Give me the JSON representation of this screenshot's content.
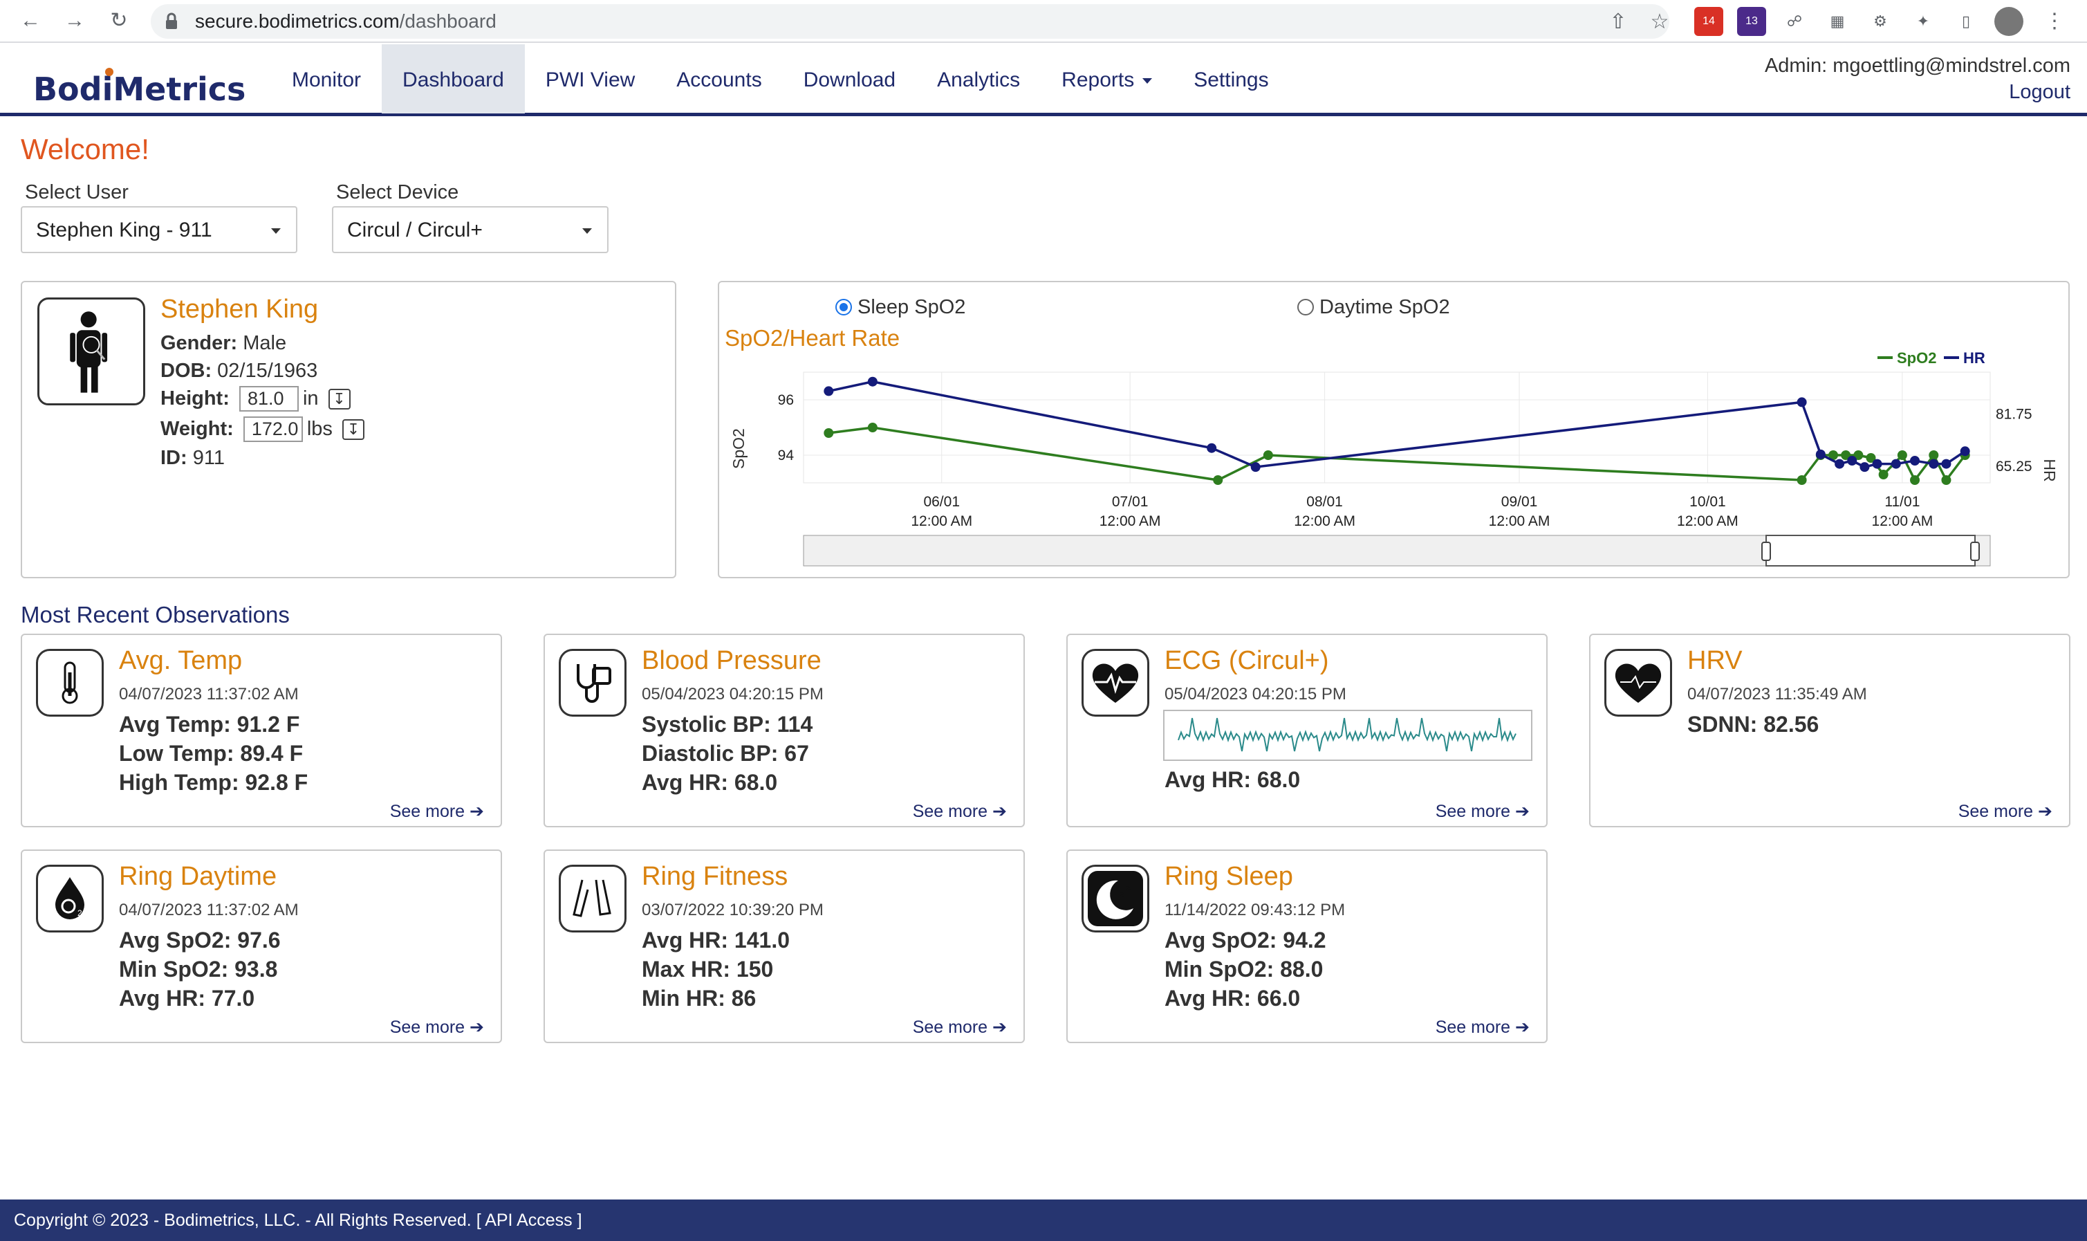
{
  "browser": {
    "url_host": "secure.bodimetrics.com",
    "url_path": "/dashboard",
    "ext_badges": [
      "14",
      "13"
    ]
  },
  "app": {
    "logo": {
      "pre": "Bod",
      "i": "i",
      "post": "Metrics"
    },
    "nav": [
      "Monitor",
      "Dashboard",
      "PWI View",
      "Accounts",
      "Download",
      "Analytics",
      "Reports",
      "Settings"
    ],
    "active_nav": "Dashboard",
    "admin_label": "Admin: mgoettling@mindstrel.com",
    "logout": "Logout"
  },
  "welcome": "Welcome!",
  "select_user": {
    "label": "Select User",
    "value": "Stephen King - 911"
  },
  "select_device": {
    "label": "Select Device",
    "value": "Circul / Circul+"
  },
  "profile": {
    "name": "Stephen King",
    "gender_label": "Gender:",
    "gender": "Male",
    "dob_label": "DOB:",
    "dob": "02/15/1963",
    "height_label": "Height:",
    "height": "81.0",
    "height_unit": "in",
    "weight_label": "Weight:",
    "weight": "172.0",
    "weight_unit": "lbs",
    "id_label": "ID:",
    "id": "911"
  },
  "chart_card": {
    "radio_sleep": "Sleep SpO2",
    "radio_day": "Daytime SpO2",
    "title": "SpO2/Heart Rate"
  },
  "chart_data": {
    "type": "line",
    "title": "SpO2/Heart Rate",
    "ylabel": "SpO2",
    "y2label": "HR",
    "x_ticks": [
      {
        "date": "06/01",
        "time": "12:00 AM"
      },
      {
        "date": "07/01",
        "time": "12:00 AM"
      },
      {
        "date": "08/01",
        "time": "12:00 AM"
      },
      {
        "date": "09/01",
        "time": "12:00 AM"
      },
      {
        "date": "10/01",
        "time": "12:00 AM"
      },
      {
        "date": "11/01",
        "time": "12:00 AM"
      }
    ],
    "y_ticks": [
      "96",
      "94"
    ],
    "y2_ticks": [
      "81.75",
      "65.25"
    ],
    "legend": [
      {
        "name": "SpO2",
        "color": "#2e7d1f"
      },
      {
        "name": "HR",
        "color": "#141b7a"
      }
    ],
    "legend_position": "top-right",
    "grid": true,
    "series": [
      {
        "name": "SpO2",
        "color": "#2e7d1f",
        "points": [
          [
            "05/14",
            94.8
          ],
          [
            "05/21",
            95.0
          ],
          [
            "07/15",
            93.1
          ],
          [
            "07/23",
            94.0
          ],
          [
            "10/16",
            93.1
          ],
          [
            "10/19",
            94.0
          ],
          [
            "10/21",
            94.0
          ],
          [
            "10/23",
            94.0
          ],
          [
            "10/25",
            94.0
          ],
          [
            "10/27",
            93.9
          ],
          [
            "10/29",
            93.3
          ],
          [
            "11/01",
            94.0
          ],
          [
            "11/03",
            93.1
          ],
          [
            "11/06",
            94.0
          ],
          [
            "11/08",
            93.1
          ],
          [
            "11/11",
            94.0
          ]
        ]
      },
      {
        "name": "HR",
        "color": "#141b7a",
        "points": [
          [
            "05/14",
            89.0
          ],
          [
            "05/21",
            92.0
          ],
          [
            "07/14",
            71.0
          ],
          [
            "07/21",
            65.0
          ],
          [
            "10/16",
            85.5
          ],
          [
            "10/19",
            69.0
          ],
          [
            "10/22",
            66.0
          ],
          [
            "10/24",
            67.0
          ],
          [
            "10/26",
            65.0
          ],
          [
            "10/28",
            66.0
          ],
          [
            "10/31",
            66.0
          ],
          [
            "11/03",
            67.0
          ],
          [
            "11/06",
            66.0
          ],
          [
            "11/08",
            66.0
          ],
          [
            "11/11",
            70.0
          ]
        ]
      }
    ]
  },
  "section_title": "Most Recent Observations",
  "observations": [
    {
      "title": "Avg. Temp",
      "date": "04/07/2023 11:37:02 AM",
      "lines": [
        "Avg Temp: 91.2 F",
        "Low Temp: 89.4 F",
        "High Temp: 92.8 F"
      ],
      "more": "See more",
      "icon": "thermometer-icon"
    },
    {
      "title": "Blood Pressure",
      "date": "05/04/2023 04:20:15 PM",
      "lines": [
        "Systolic BP: 114",
        "Diastolic BP: 67",
        "Avg HR: 68.0"
      ],
      "more": "See more",
      "icon": "stethoscope-icon"
    },
    {
      "title": "ECG (Circul+)",
      "date": "05/04/2023 04:20:15 PM",
      "lines": [
        "Avg HR: 68.0"
      ],
      "more": "See more",
      "icon": "heart-ecg-icon"
    },
    {
      "title": "HRV",
      "date": "04/07/2023 11:35:49 AM",
      "lines": [
        "SDNN: 82.56"
      ],
      "more": "See more",
      "icon": "heart-icon"
    },
    {
      "title": "Ring Daytime",
      "date": "04/07/2023 11:37:02 AM",
      "lines": [
        "Avg SpO2: 97.6",
        "Min SpO2: 93.8",
        "Avg HR: 77.0"
      ],
      "more": "See more",
      "icon": "oxygen-drop-icon"
    },
    {
      "title": "Ring Fitness",
      "date": "03/07/2022 10:39:20 PM",
      "lines": [
        "Avg HR: 141.0",
        "Max HR: 150",
        "Min HR: 86"
      ],
      "more": "See more",
      "icon": "legs-icon"
    },
    {
      "title": "Ring Sleep",
      "date": "11/14/2022 09:43:12 PM",
      "lines": [
        "Avg SpO2: 94.2",
        "Min SpO2: 88.0",
        "Avg HR: 66.0"
      ],
      "more": "See more",
      "icon": "moon-sleep-icon"
    }
  ],
  "footer": "Copyright © 2023 - Bodimetrics, LLC. - All Rights Reserved.   [ API Access ]"
}
